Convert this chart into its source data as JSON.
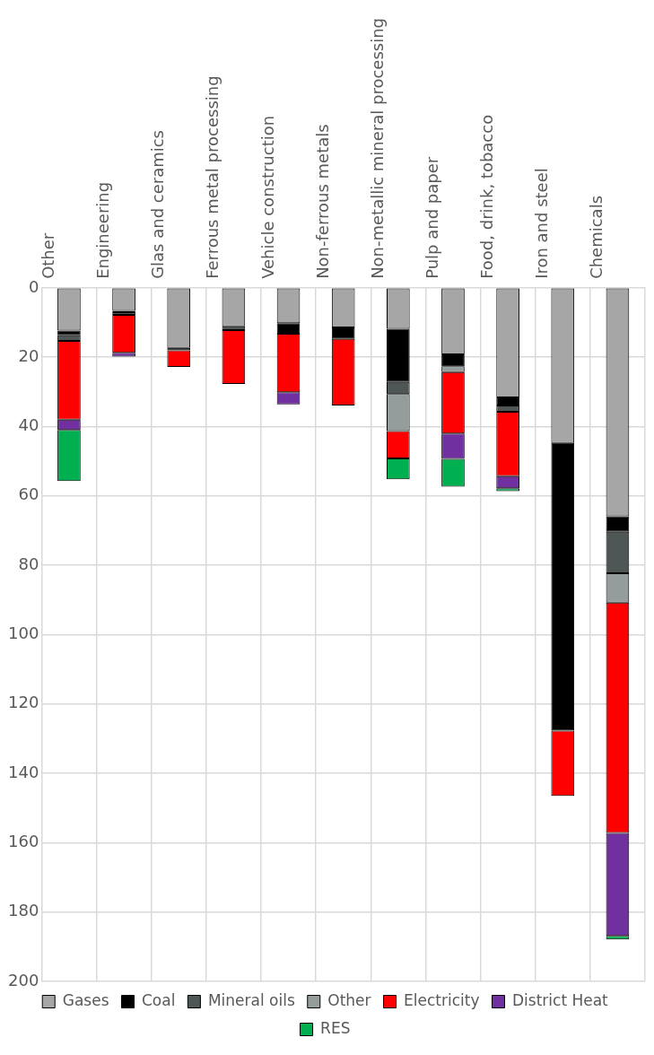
{
  "chart_data": {
    "type": "bar",
    "stacked": true,
    "categories": [
      "Other",
      "Engineering",
      "Glas and ceramics",
      "Ferrous metal processing",
      "Vehicle construction",
      "Non-ferrous metals",
      "Non-metallic mineral processing",
      "Pulp and paper",
      "Food, drink, tobacco",
      "Iron and steel",
      "Chemicals"
    ],
    "series": [
      {
        "name": "Gases",
        "color": "#a6a6a6",
        "values": [
          12.3,
          6.6,
          17.3,
          11.1,
          10.2,
          11.4,
          11.8,
          19.2,
          31.6,
          44.7,
          65.9
        ]
      },
      {
        "name": "Coal",
        "color": "#000000",
        "values": [
          1.4,
          0.4,
          0.7,
          0,
          3.0,
          3.3,
          15.3,
          3.4,
          2.3,
          83.0,
          4.4
        ]
      },
      {
        "name": "Mineral oils",
        "color": "#4f5756",
        "values": [
          1.6,
          0.8,
          0,
          1.1,
          0,
          0,
          3.5,
          0,
          1.8,
          0,
          12.0
        ]
      },
      {
        "name": "Other",
        "color": "#959c9c",
        "values": [
          0,
          0,
          0,
          0,
          0,
          0,
          10.7,
          1.7,
          0,
          0,
          8.5
        ]
      },
      {
        "name": "Electricity",
        "color": "#ff0000",
        "values": [
          22.7,
          10.9,
          4.8,
          15.5,
          16.9,
          19.2,
          7.9,
          17.7,
          18.6,
          18.8,
          66.4
        ]
      },
      {
        "name": "District Heat",
        "color": "#7030a0",
        "values": [
          3.0,
          1.1,
          0,
          0,
          3.5,
          0,
          0,
          7.3,
          3.5,
          0,
          29.7
        ]
      },
      {
        "name": "RES",
        "color": "#00b050",
        "values": [
          14.7,
          0,
          0,
          0,
          0,
          0,
          6.0,
          8.0,
          0.8,
          0,
          1.0
        ]
      }
    ],
    "ylim": [
      200,
      0
    ],
    "yticks": [
      0,
      20,
      40,
      60,
      80,
      100,
      120,
      140,
      160,
      180,
      200
    ],
    "grid": true,
    "legend": "bottom"
  }
}
